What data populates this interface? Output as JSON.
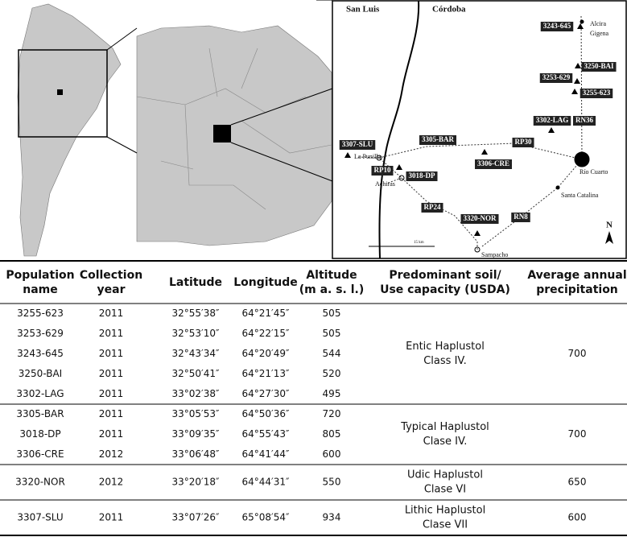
{
  "map": {
    "regions": [
      "San Luis",
      "Córdoba"
    ],
    "populations": [
      "3243-645",
      "3250-BAI",
      "3253-629",
      "3255-623",
      "3302-LAG",
      "3305-BAR",
      "3306-CRE",
      "3307-SLU",
      "3018-DP",
      "3320-NOR"
    ],
    "places": [
      "Alcira",
      "Gigena",
      "La Punilla",
      "Achiras",
      "Río Cuarto",
      "Santa Catalina",
      "Sampacho"
    ],
    "roads": [
      "RN36",
      "RP30",
      "RP10",
      "RP24",
      "RN8"
    ],
    "north": "N",
    "scale": "15 km"
  },
  "table": {
    "header": [
      [
        "Population",
        "name"
      ],
      [
        "Collection",
        "year"
      ],
      [
        "Latitude"
      ],
      [
        "Longitude"
      ],
      [
        "Altitude",
        "(m a. s. l.)"
      ],
      [
        "Predominant soil/",
        "Use capacity (USDA)"
      ],
      [
        "Average annual",
        "precipitation"
      ]
    ],
    "groups": [
      {
        "rows": [
          [
            "3255-623",
            2011,
            "32°55′38″",
            "64°21′45″",
            505
          ],
          [
            "3253-629",
            2011,
            "32°53′10″",
            "64°22′15″",
            505
          ],
          [
            "3243-645",
            2011,
            "32°43′34″",
            "64°20′49″",
            544
          ],
          [
            "3250-BAI",
            2011,
            "32°50′41″",
            "64°21′13″",
            520
          ],
          [
            "3302-LAG",
            2011,
            "33°02′38″",
            "64°27′30″",
            495
          ]
        ],
        "soil": [
          "Entic Haplustol",
          "Class IV."
        ],
        "precipitation": 700
      },
      {
        "rows": [
          [
            "3305-BAR",
            2011,
            "33°05′53″",
            "64°50′36″",
            720
          ],
          [
            "3018-DP",
            2011,
            "33°09′35″",
            "64°55′43″",
            805
          ],
          [
            "3306-CRE",
            2012,
            "33°06′48″",
            "64°41′44″",
            600
          ]
        ],
        "soil": [
          "Typical Haplustol",
          "Clase IV."
        ],
        "precipitation": 700
      },
      {
        "rows": [
          [
            "3320-NOR",
            2012,
            "33°20′18″",
            "64°44′31″",
            550
          ]
        ],
        "soil": [
          "Udic Haplustol",
          "Clase VI"
        ],
        "precipitation": 650
      },
      {
        "rows": [
          [
            "3307-SLU",
            2011,
            "33°07′26″",
            "65°08′54″",
            934
          ]
        ],
        "soil": [
          "Lithic Haplustol",
          "Clase VII"
        ],
        "precipitation": 600
      }
    ]
  }
}
